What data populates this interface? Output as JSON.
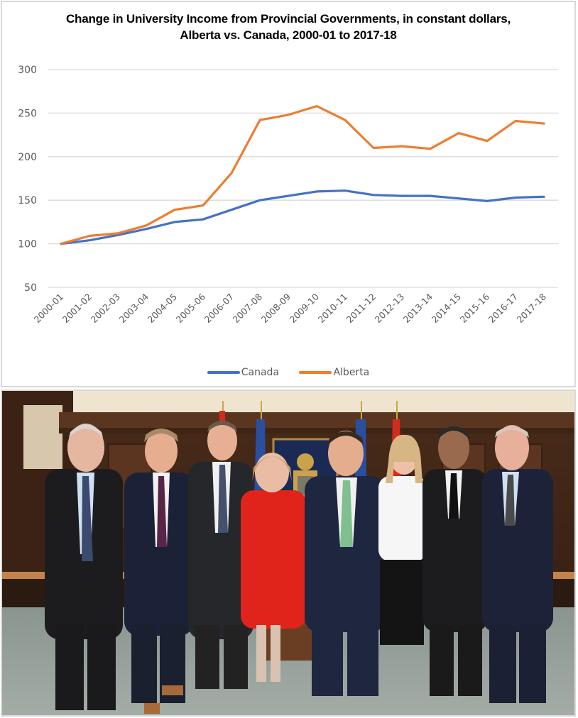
{
  "chart": {
    "title_line1": "Change in University Income from Provincial Governments, in constant dollars,",
    "title_line2": "Alberta vs. Canada, 2000-01 to 2017-18",
    "y_ticks": [
      "300",
      "250",
      "200",
      "150",
      "100",
      "50"
    ],
    "legend": [
      {
        "label": "Canada",
        "color": "#4472c4"
      },
      {
        "label": "Alberta",
        "color": "#ed7d31"
      }
    ]
  },
  "chart_data": {
    "type": "line",
    "title": "Change in University Income from Provincial Governments, in constant dollars, Alberta vs. Canada, 2000-01 to 2017-18",
    "xlabel": "",
    "ylabel": "",
    "ylim": [
      50,
      300
    ],
    "yticks": [
      50,
      100,
      150,
      200,
      250,
      300
    ],
    "grid": true,
    "legend_position": "bottom",
    "categories": [
      "2000-01",
      "2001-02",
      "2002-03",
      "2003-04",
      "2004-05",
      "2005-06",
      "2006-07",
      "2007-08",
      "2008-09",
      "2009-10",
      "2010-11",
      "2011-12",
      "2012-13",
      "2013-14",
      "2014-15",
      "2015-16",
      "2016-17",
      "2017-18"
    ],
    "series": [
      {
        "name": "Canada",
        "color": "#4472c4",
        "values": [
          100,
          104,
          110,
          117,
          125,
          128,
          139,
          150,
          155,
          160,
          161,
          156,
          155,
          155,
          152,
          149,
          153,
          154
        ]
      },
      {
        "name": "Alberta",
        "color": "#ed7d31",
        "values": [
          100,
          109,
          112,
          121,
          139,
          144,
          181,
          242,
          248,
          258,
          242,
          210,
          212,
          209,
          227,
          218,
          241,
          238
        ]
      }
    ]
  },
  "photo": {
    "description": "Group photo of eight people standing in a wood-paneled chamber in front of flags and the Alberta coat of arms",
    "people_count": 8
  }
}
